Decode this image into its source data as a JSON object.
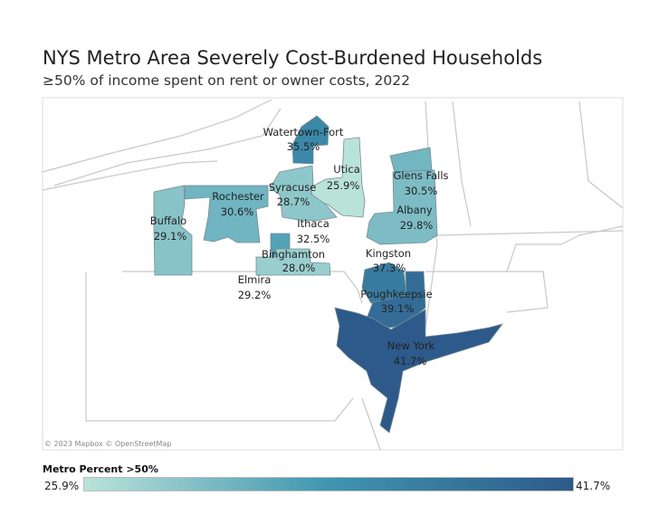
{
  "title": "NYS Metro Area Severely Cost-Burdened Households",
  "subtitle": "≥50% of income spent on rent or owner costs, 2022",
  "attribution": "© 2023 Mapbox © OpenStreetMap",
  "legend": {
    "title": "Metro Percent >50%",
    "min_label": "25.9%",
    "max_label": "41.7%",
    "min": 25.9,
    "max": 41.7,
    "colors": [
      "#b9e3d9",
      "#3f95b0",
      "#2d5a8a"
    ]
  },
  "regions": [
    {
      "id": "watertown",
      "name": "Watertown-Fort",
      "value": 35.5,
      "label": "35.5%"
    },
    {
      "id": "utica",
      "name": "Utica",
      "value": 25.9,
      "label": "25.9%"
    },
    {
      "id": "syracuse",
      "name": "Syracuse",
      "value": 28.7,
      "label": "28.7%"
    },
    {
      "id": "rochester",
      "name": "Rochester",
      "value": 30.6,
      "label": "30.6%"
    },
    {
      "id": "buffalo",
      "name": "Buffalo",
      "value": 29.1,
      "label": "29.1%"
    },
    {
      "id": "ithaca",
      "name": "Ithaca",
      "value": 32.5,
      "label": "32.5%"
    },
    {
      "id": "binghamton",
      "name": "Binghamton",
      "value": 28.0,
      "label": "28.0%"
    },
    {
      "id": "elmira",
      "name": "Elmira",
      "value": 29.2,
      "label": "29.2%"
    },
    {
      "id": "glens-falls",
      "name": "Glens Falls",
      "value": 30.5,
      "label": "30.5%"
    },
    {
      "id": "albany",
      "name": "Albany",
      "value": 29.8,
      "label": "29.8%"
    },
    {
      "id": "kingston",
      "name": "Kingston",
      "value": 37.3,
      "label": "37.3%"
    },
    {
      "id": "poughkeepsie",
      "name": "Poughkeepsie",
      "value": 39.1,
      "label": "39.1%"
    },
    {
      "id": "new-york",
      "name": "New York",
      "value": 41.7,
      "label": "41.7%"
    }
  ]
}
